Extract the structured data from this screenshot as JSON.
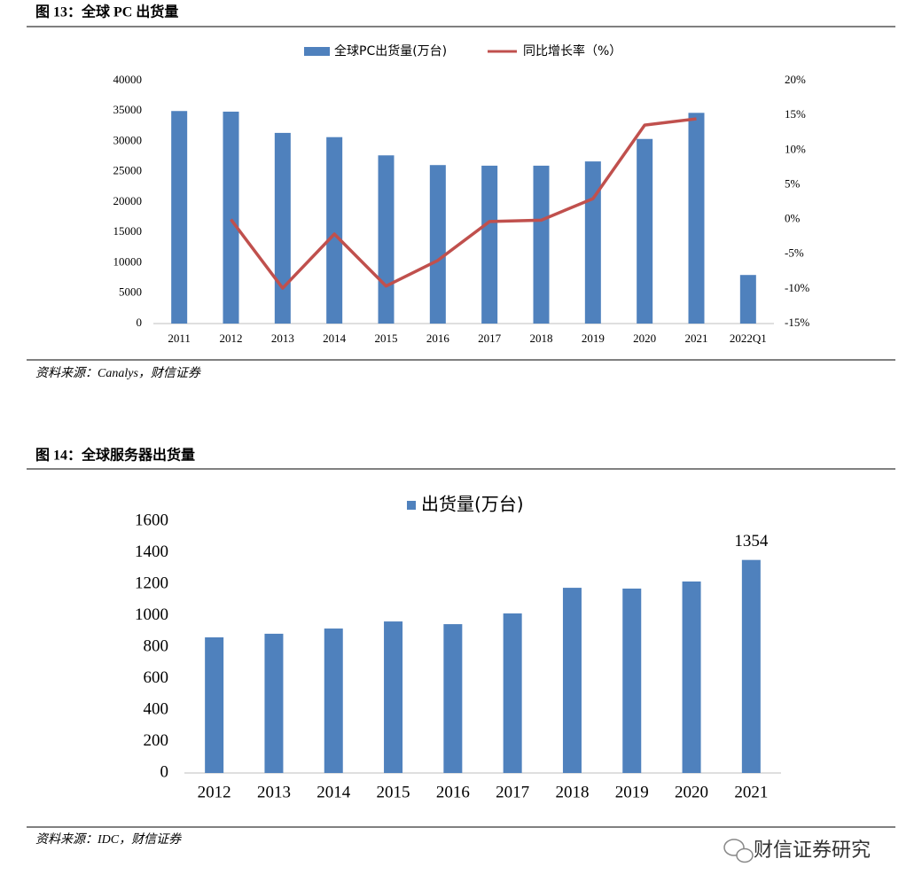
{
  "figures": [
    {
      "title": "图 13：全球 PC 出货量",
      "source": "资料来源：Canalys，财信证券"
    },
    {
      "title": "图 14：全球服务器出货量",
      "source": "资料来源：IDC，财信证券"
    }
  ],
  "watermark": "财信证券研究",
  "chart_data": [
    {
      "type": "bar",
      "categories": [
        "2011",
        "2012",
        "2013",
        "2014",
        "2015",
        "2016",
        "2017",
        "2018",
        "2019",
        "2020",
        "2021",
        "2022Q1"
      ],
      "series": [
        {
          "name": "全球PC出货量(万台)",
          "type": "bar",
          "color": "#4f81bd",
          "values": [
            35000,
            34900,
            31400,
            30700,
            27700,
            26100,
            26000,
            26000,
            26700,
            30400,
            34700,
            8000
          ]
        },
        {
          "name": "同比增长率（%）",
          "type": "line",
          "axis": "y2",
          "color": "#c0504d",
          "values": [
            null,
            0,
            -9.9,
            -2.1,
            -9.6,
            -5.9,
            -0.3,
            -0.1,
            3.0,
            13.6,
            14.5,
            null
          ]
        }
      ],
      "ylim": [
        0,
        40000
      ],
      "yticks": [
        0,
        5000,
        10000,
        15000,
        20000,
        25000,
        30000,
        35000,
        40000
      ],
      "y2lim": [
        -15,
        20
      ],
      "y2ticks": [
        {
          "value": -15,
          "label": "-15%"
        },
        {
          "value": -10,
          "label": "-10%"
        },
        {
          "value": -5,
          "label": "-5%"
        },
        {
          "value": 0,
          "label": "0%"
        },
        {
          "value": 5,
          "label": "5%"
        },
        {
          "value": 10,
          "label": "10%"
        },
        {
          "value": 15,
          "label": "15%"
        },
        {
          "value": 20,
          "label": "20%"
        }
      ],
      "grid": false,
      "legend": "top"
    },
    {
      "type": "bar",
      "categories": [
        "2012",
        "2013",
        "2014",
        "2015",
        "2016",
        "2017",
        "2018",
        "2019",
        "2020",
        "2021"
      ],
      "series": [
        {
          "name": "出货量(万台)",
          "type": "bar",
          "color": "#4f81bd",
          "values": [
            862,
            885,
            918,
            963,
            946,
            1014,
            1177,
            1172,
            1217,
            1354
          ],
          "value_labels": [
            null,
            null,
            null,
            null,
            null,
            null,
            null,
            null,
            null,
            "1354"
          ]
        }
      ],
      "ylim": [
        0,
        1600
      ],
      "yticks": [
        0,
        200,
        400,
        600,
        800,
        1000,
        1200,
        1400,
        1600
      ],
      "grid": false,
      "legend": "top"
    }
  ]
}
